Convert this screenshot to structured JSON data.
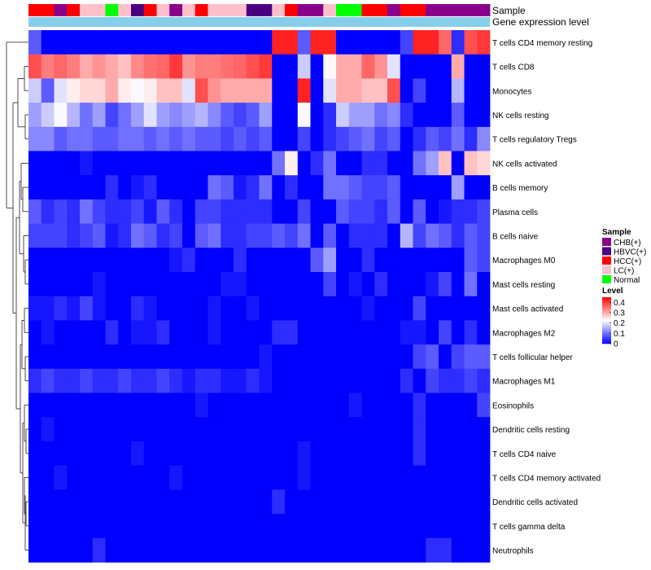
{
  "chart_data": {
    "type": "heatmap",
    "title": "",
    "value_range": [
      0,
      0.45
    ],
    "colors": {
      "low": "#0000ff",
      "mid": "#ffffff",
      "high": "#ff0000"
    },
    "annotation_labels": [
      "Sample",
      "Gene expression level"
    ],
    "sample_groups": [
      {
        "name": "CHB(+)",
        "color": "#8b008b"
      },
      {
        "name": "HBVC(+)",
        "color": "#4b0082"
      },
      {
        "name": "HCC(+)",
        "color": "#ff0000"
      },
      {
        "name": "LC(+)",
        "color": "#ffc0cb"
      },
      {
        "name": "Normal",
        "color": "#00ff00"
      }
    ],
    "sample_annotation": [
      "HCC(+)",
      "HCC(+)",
      "CHB(+)",
      "HCC(+)",
      "LC(+)",
      "LC(+)",
      "Normal",
      "LC(+)",
      "HBVC(+)",
      "HCC(+)",
      "LC(+)",
      "CHB(+)",
      "LC(+)",
      "HCC(+)",
      "LC(+)",
      "LC(+)",
      "LC(+)",
      "HBVC(+)",
      "HBVC(+)",
      "LC(+)",
      "HCC(+)",
      "CHB(+)",
      "CHB(+)",
      "LC(+)",
      "Normal",
      "Normal",
      "HCC(+)",
      "HCC(+)",
      "CHB(+)",
      "HCC(+)",
      "HCC(+)",
      "CHB(+)",
      "CHB(+)",
      "CHB(+)",
      "CHB(+)",
      "CHB(+)"
    ],
    "gene_expression_level_color": "#87ceeb",
    "rows": [
      "T cells CD4 memory resting",
      "T cells CD8",
      "Monocytes",
      "NK cells resting",
      "T cells regulatory  Tregs",
      "NK cells activated",
      "B cells memory",
      "Plasma cells",
      "B cells naive",
      "Macrophages M0",
      "Mast cells resting",
      "Mast cells activated",
      "Macrophages M2",
      "T cells follicular helper",
      "Macrophages M1",
      "Eosinophils",
      "Dendritic cells resting",
      "T cells CD4 naive",
      "T cells CD4 memory activated",
      "Dendritic cells activated",
      "T cells gamma delta",
      "Neutrophils"
    ],
    "values": [
      [
        0.08,
        0,
        0,
        0,
        0,
        0,
        0,
        0,
        0,
        0,
        0,
        0,
        0,
        0,
        0,
        0,
        0,
        0,
        0,
        0.42,
        0.42,
        0.08,
        0.42,
        0.42,
        0,
        0,
        0,
        0,
        0,
        0.06,
        0.42,
        0.42,
        0.36,
        0.04,
        0.38,
        0.4
      ],
      [
        0.38,
        0.34,
        0.36,
        0.34,
        0.3,
        0.32,
        0.3,
        0.28,
        0.33,
        0.35,
        0.36,
        0.4,
        0.32,
        0.34,
        0.34,
        0.35,
        0.36,
        0.38,
        0.4,
        0,
        0,
        0.18,
        0,
        0.22,
        0.3,
        0.3,
        0.36,
        0.32,
        0.2,
        0,
        0,
        0,
        0,
        0.3,
        0,
        0
      ],
      [
        0.18,
        0.08,
        0.2,
        0.24,
        0.26,
        0.26,
        0.3,
        0.24,
        0.22,
        0.24,
        0.28,
        0.28,
        0.2,
        0.38,
        0.32,
        0.3,
        0.3,
        0.3,
        0.3,
        0,
        0,
        0.42,
        0,
        0.2,
        0.3,
        0.3,
        0.28,
        0.28,
        0.38,
        0,
        0.06,
        0,
        0,
        0.16,
        0,
        0
      ],
      [
        0.14,
        0.18,
        0.22,
        0.16,
        0.1,
        0.14,
        0.06,
        0.1,
        0.14,
        0.2,
        0.14,
        0.12,
        0.14,
        0.16,
        0.12,
        0.08,
        0.06,
        0.08,
        0.14,
        0,
        0,
        0.22,
        0,
        0.04,
        0.18,
        0.14,
        0.14,
        0.1,
        0.12,
        0.04,
        0,
        0,
        0,
        0.08,
        0,
        0
      ],
      [
        0.12,
        0.12,
        0.08,
        0.1,
        0.1,
        0.08,
        0.08,
        0.1,
        0.1,
        0.08,
        0.1,
        0.08,
        0.1,
        0.08,
        0.08,
        0.06,
        0.08,
        0.06,
        0.08,
        0,
        0,
        0.06,
        0,
        0.04,
        0.06,
        0.08,
        0.1,
        0.06,
        0.08,
        0,
        0.04,
        0.08,
        0.06,
        0.1,
        0.04,
        0.12
      ],
      [
        0,
        0,
        0,
        0,
        0.02,
        0,
        0,
        0,
        0,
        0,
        0,
        0,
        0,
        0,
        0,
        0,
        0,
        0,
        0,
        0.1,
        0.24,
        0,
        0.04,
        0.1,
        0,
        0,
        0.04,
        0.04,
        0,
        0,
        0.1,
        0.14,
        0.28,
        0,
        0.28,
        0.26
      ],
      [
        0,
        0,
        0,
        0,
        0,
        0,
        0.04,
        0,
        0.02,
        0.04,
        0,
        0,
        0,
        0,
        0.1,
        0.08,
        0.02,
        0.04,
        0.1,
        0,
        0.04,
        0,
        0,
        0.1,
        0.1,
        0.08,
        0.06,
        0.06,
        0.08,
        0,
        0,
        0,
        0,
        0.14,
        0,
        0
      ],
      [
        0.08,
        0.04,
        0.06,
        0.04,
        0.1,
        0.06,
        0.04,
        0.04,
        0.06,
        0.02,
        0.08,
        0.04,
        0,
        0.06,
        0.06,
        0.04,
        0.04,
        0.04,
        0.04,
        0,
        0,
        0.06,
        0,
        0,
        0.08,
        0.06,
        0.06,
        0.04,
        0.08,
        0,
        0.08,
        0,
        0.02,
        0.04,
        0.04,
        0.06
      ],
      [
        0.06,
        0.06,
        0.06,
        0.04,
        0.06,
        0.08,
        0.02,
        0.04,
        0.1,
        0.08,
        0.04,
        0.06,
        0,
        0.08,
        0.1,
        0.04,
        0.04,
        0.06,
        0.06,
        0.08,
        0.06,
        0.1,
        0,
        0.08,
        0,
        0.04,
        0.04,
        0.04,
        0,
        0.16,
        0.06,
        0.1,
        0.08,
        0.04,
        0.08,
        0.06
      ],
      [
        0,
        0,
        0,
        0,
        0,
        0,
        0,
        0,
        0,
        0,
        0,
        0.02,
        0.04,
        0,
        0,
        0,
        0.04,
        0,
        0,
        0,
        0,
        0,
        0.08,
        0.14,
        0,
        0,
        0.04,
        0,
        0,
        0,
        0,
        0,
        0,
        0,
        0.08,
        0.06
      ],
      [
        0,
        0,
        0,
        0,
        0,
        0.02,
        0,
        0,
        0,
        0,
        0,
        0,
        0,
        0,
        0,
        0.02,
        0.02,
        0,
        0,
        0,
        0,
        0,
        0,
        0.06,
        0,
        0.02,
        0,
        0.04,
        0,
        0,
        0,
        0.02,
        0.06,
        0,
        0.1,
        0
      ],
      [
        0.02,
        0.02,
        0.04,
        0.02,
        0.06,
        0.02,
        0,
        0,
        0.04,
        0.02,
        0,
        0,
        0,
        0,
        0.02,
        0,
        0,
        0.02,
        0,
        0,
        0,
        0,
        0,
        0,
        0,
        0,
        0.02,
        0,
        0,
        0,
        0.06,
        0,
        0,
        0,
        0,
        0
      ],
      [
        0,
        0.02,
        0,
        0,
        0,
        0,
        0.04,
        0,
        0.02,
        0.02,
        0.04,
        0,
        0,
        0,
        0.02,
        0,
        0,
        0,
        0,
        0.04,
        0.04,
        0,
        0,
        0,
        0,
        0,
        0,
        0,
        0,
        0.02,
        0.02,
        0,
        0.06,
        0,
        0.04,
        0
      ],
      [
        0,
        0,
        0,
        0,
        0,
        0,
        0,
        0,
        0,
        0,
        0,
        0,
        0,
        0,
        0,
        0,
        0,
        0,
        0.02,
        0,
        0,
        0,
        0,
        0,
        0,
        0,
        0,
        0,
        0,
        0,
        0.06,
        0.08,
        0,
        0.06,
        0.08,
        0.08
      ],
      [
        0.04,
        0.06,
        0.04,
        0.04,
        0.06,
        0.04,
        0.04,
        0.06,
        0.04,
        0.04,
        0.06,
        0.04,
        0.02,
        0.04,
        0.04,
        0.02,
        0.02,
        0.04,
        0.02,
        0,
        0,
        0,
        0,
        0,
        0,
        0,
        0,
        0,
        0,
        0.04,
        0,
        0.06,
        0.04,
        0.04,
        0.06,
        0.04
      ],
      [
        0,
        0,
        0,
        0,
        0,
        0,
        0,
        0,
        0,
        0,
        0,
        0,
        0,
        0.02,
        0,
        0,
        0,
        0,
        0,
        0,
        0,
        0,
        0,
        0,
        0,
        0.02,
        0,
        0,
        0,
        0,
        0.04,
        0,
        0,
        0,
        0,
        0.06
      ],
      [
        0,
        0.02,
        0,
        0,
        0,
        0,
        0,
        0,
        0,
        0,
        0,
        0,
        0,
        0,
        0,
        0,
        0,
        0,
        0,
        0,
        0,
        0,
        0,
        0,
        0,
        0,
        0,
        0,
        0,
        0,
        0.04,
        0,
        0,
        0,
        0,
        0
      ],
      [
        0,
        0,
        0,
        0,
        0,
        0,
        0,
        0,
        0.02,
        0,
        0,
        0,
        0,
        0,
        0,
        0,
        0,
        0,
        0,
        0,
        0,
        0.02,
        0,
        0,
        0,
        0,
        0,
        0,
        0,
        0,
        0.04,
        0,
        0,
        0,
        0,
        0
      ],
      [
        0,
        0,
        0.02,
        0,
        0,
        0,
        0,
        0,
        0,
        0,
        0,
        0.02,
        0,
        0,
        0,
        0,
        0,
        0,
        0,
        0,
        0,
        0.02,
        0,
        0,
        0,
        0,
        0,
        0,
        0,
        0,
        0,
        0,
        0,
        0,
        0,
        0
      ],
      [
        0,
        0,
        0,
        0,
        0,
        0,
        0,
        0,
        0,
        0,
        0,
        0,
        0,
        0,
        0,
        0,
        0,
        0,
        0,
        0.04,
        0,
        0,
        0,
        0,
        0,
        0,
        0,
        0,
        0,
        0,
        0,
        0,
        0,
        0,
        0,
        0
      ],
      [
        0,
        0,
        0,
        0,
        0,
        0,
        0,
        0,
        0,
        0,
        0,
        0,
        0,
        0,
        0,
        0,
        0,
        0,
        0,
        0,
        0,
        0,
        0,
        0,
        0,
        0,
        0,
        0,
        0,
        0,
        0,
        0,
        0,
        0,
        0,
        0
      ],
      [
        0,
        0,
        0,
        0,
        0,
        0.04,
        0,
        0,
        0,
        0,
        0,
        0,
        0,
        0,
        0,
        0,
        0,
        0,
        0,
        0,
        0,
        0,
        0,
        0,
        0,
        0,
        0,
        0,
        0,
        0,
        0,
        0.04,
        0.04,
        0,
        0,
        0
      ]
    ],
    "legend": {
      "sample_title": "Sample",
      "level_title": "Level",
      "level_ticks": [
        0,
        0.1,
        0.2,
        0.3,
        0.4
      ]
    }
  }
}
